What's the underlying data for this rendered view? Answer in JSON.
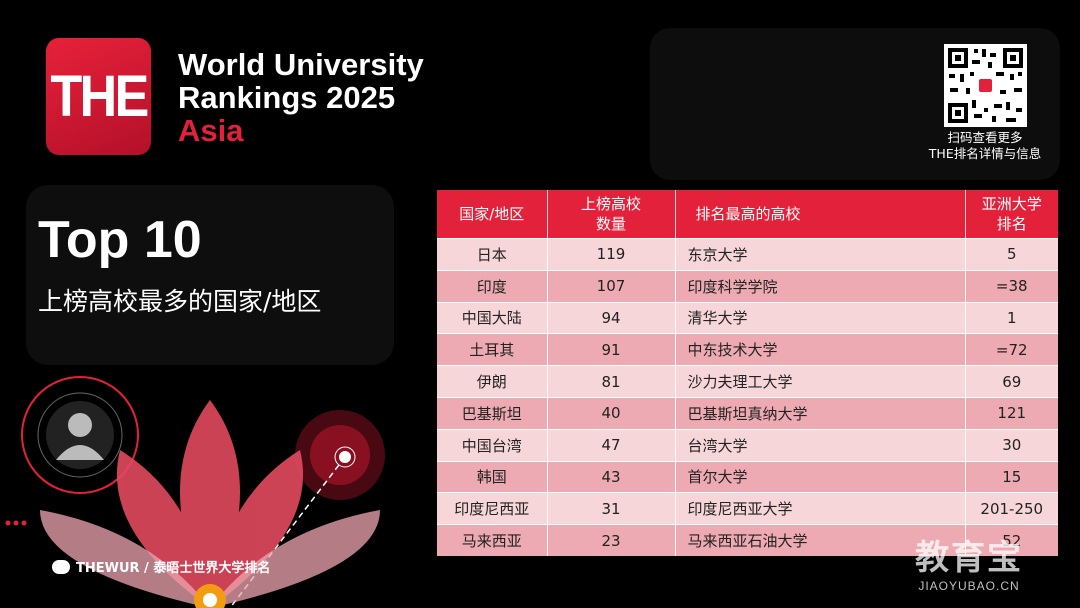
{
  "logo": {
    "text": "THE"
  },
  "ranking_title": {
    "line1": "World University",
    "line2": "Rankings 2025",
    "line3": "Asia"
  },
  "qr": {
    "caption_line1": "扫码查看更多",
    "caption_line2": "THE排名详情与信息"
  },
  "headline": {
    "title": "Top 10",
    "subtitle": "上榜高校最多的国家/地区"
  },
  "table": {
    "headers": [
      "国家/地区",
      "上榜高校\n数量",
      "排名最高的高校",
      "亚洲大学\n排名"
    ],
    "rows": [
      [
        "日本",
        "119",
        "东京大学",
        "5"
      ],
      [
        "印度",
        "107",
        "印度科学学院",
        "=38"
      ],
      [
        "中国大陆",
        "94",
        "清华大学",
        "1"
      ],
      [
        "土耳其",
        "91",
        "中东技术大学",
        "=72"
      ],
      [
        "伊朗",
        "81",
        "沙力夫理工大学",
        "69"
      ],
      [
        "巴基斯坦",
        "40",
        "巴基斯坦真纳大学",
        "121"
      ],
      [
        "中国台湾",
        "47",
        "台湾大学",
        "30"
      ],
      [
        "韩国",
        "43",
        "首尔大学",
        "15"
      ],
      [
        "印度尼西亚",
        "31",
        "印度尼西亚大学",
        "201-250"
      ],
      [
        "马来西亚",
        "23",
        "马来西亚石油大学",
        "52"
      ]
    ]
  },
  "footer": {
    "handle": "THEWUR / 泰晤士世界大学排名"
  },
  "watermark": {
    "main": "教育宝",
    "sub": "JIAOYUBAO.CN"
  },
  "colors": {
    "brand_red": "#e3213b",
    "row_light": "#f7d6da",
    "row_dark": "#eeaab3"
  }
}
